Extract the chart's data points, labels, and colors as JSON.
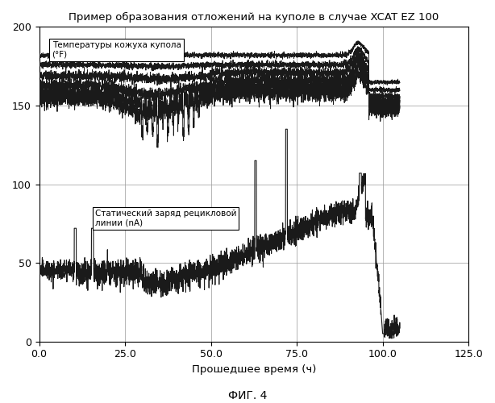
{
  "title": "Пример образования отложений на куполе в случае XCAT EZ 100",
  "xlabel": "Прошедшее время (ч)",
  "fig_label": "ФИГ. 4",
  "xlim": [
    0.0,
    125.0
  ],
  "ylim": [
    0,
    200
  ],
  "yticks": [
    0,
    50,
    100,
    150,
    200
  ],
  "xticks": [
    0.0,
    25.0,
    50.0,
    75.0,
    100.0,
    125.0
  ],
  "legend1_text": "Температуры кожуха купола\n(°F)",
  "legend2_text": "Статический заряд рецикловой\nлинии (nА)",
  "bg_color": "#ffffff",
  "line_color": "#1a1a1a",
  "grid_color": "#999999"
}
